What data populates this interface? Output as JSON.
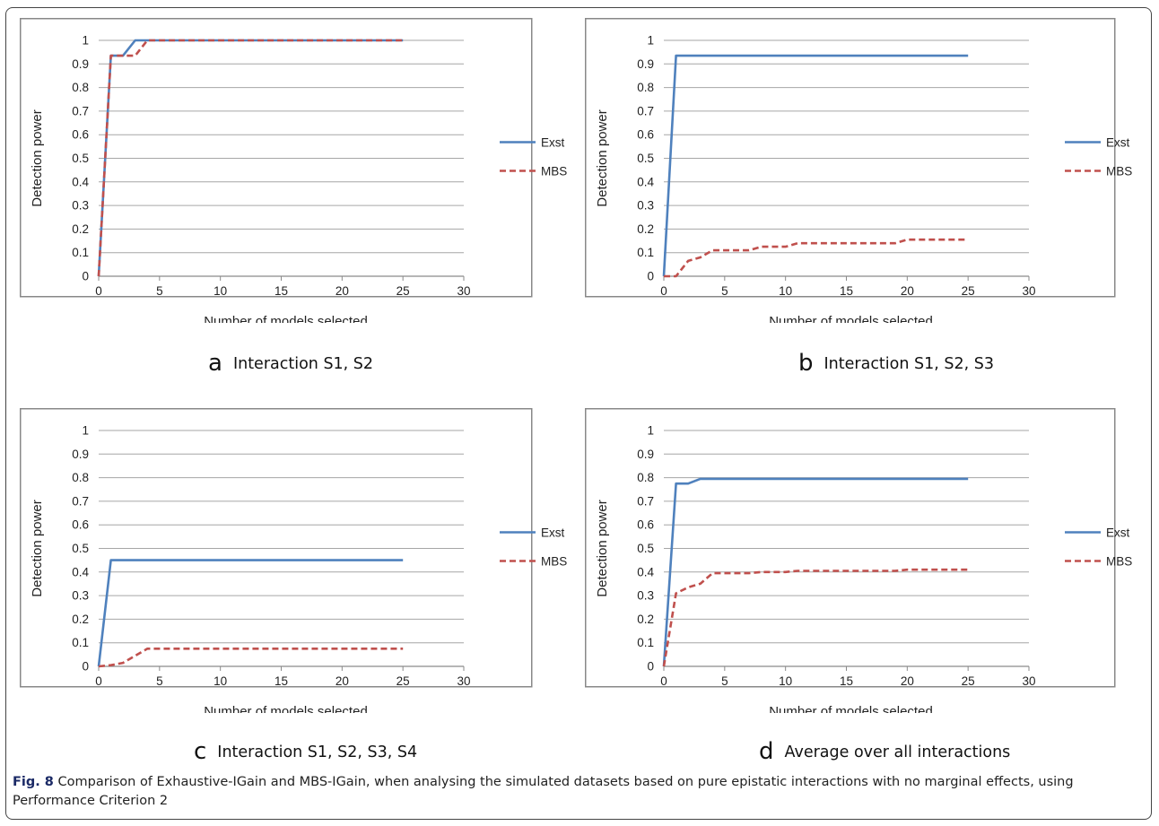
{
  "figure": {
    "label": "Fig. 8",
    "caption": "Comparison of Exhaustive-IGain and MBS-IGain, when analysing the simulated datasets based on pure epistatic interactions with no marginal effects, using Performance Criterion 2"
  },
  "panels": [
    {
      "letter": "a",
      "caption": "Interaction S1, S2"
    },
    {
      "letter": "b",
      "caption": "Interaction S1, S2, S3"
    },
    {
      "letter": "c",
      "caption": "Interaction S1, S2, S3, S4"
    },
    {
      "letter": "d",
      "caption": "Average over all interactions"
    }
  ],
  "colors": {
    "exst": "#4f81bd",
    "mbs": "#c0504d",
    "grid": "#a6a6a6",
    "frame": "#888888"
  },
  "chart_data": [
    {
      "type": "line",
      "xlabel": "Number of models selected",
      "ylabel": "Detection power",
      "xlim": [
        0,
        30
      ],
      "ylim": [
        0,
        1
      ],
      "xticks": [
        0,
        5,
        10,
        15,
        20,
        25,
        30
      ],
      "yticks": [
        0,
        0.1,
        0.2,
        0.3,
        0.4,
        0.5,
        0.6,
        0.7,
        0.8,
        0.9,
        1
      ],
      "grid": true,
      "legend": "right",
      "series": [
        {
          "name": "Exst",
          "style": "solid",
          "points": [
            [
              0,
              0
            ],
            [
              1,
              0.935
            ],
            [
              2,
              0.935
            ],
            [
              3,
              1
            ],
            [
              25,
              1
            ]
          ]
        },
        {
          "name": "MBS",
          "style": "dashed",
          "points": [
            [
              0,
              0
            ],
            [
              1,
              0.935
            ],
            [
              3,
              0.935
            ],
            [
              4,
              1
            ],
            [
              25,
              1
            ]
          ]
        }
      ]
    },
    {
      "type": "line",
      "xlabel": "Number of models selected",
      "ylabel": "Detection power",
      "xlim": [
        0,
        30
      ],
      "ylim": [
        0,
        1
      ],
      "xticks": [
        0,
        5,
        10,
        15,
        20,
        25,
        30
      ],
      "yticks": [
        0,
        0.1,
        0.2,
        0.3,
        0.4,
        0.5,
        0.6,
        0.7,
        0.8,
        0.9,
        1
      ],
      "grid": true,
      "legend": "right",
      "series": [
        {
          "name": "Exst",
          "style": "solid",
          "points": [
            [
              0,
              0
            ],
            [
              1,
              0.935
            ],
            [
              25,
              0.935
            ]
          ]
        },
        {
          "name": "MBS",
          "style": "dashed",
          "points": [
            [
              0,
              0
            ],
            [
              1,
              0
            ],
            [
              2,
              0.065
            ],
            [
              3,
              0.08
            ],
            [
              4,
              0.11
            ],
            [
              7,
              0.11
            ],
            [
              8,
              0.125
            ],
            [
              10,
              0.125
            ],
            [
              11,
              0.14
            ],
            [
              19,
              0.14
            ],
            [
              20,
              0.155
            ],
            [
              25,
              0.155
            ]
          ]
        }
      ]
    },
    {
      "type": "line",
      "xlabel": "Number of models selected",
      "ylabel": "Detection power",
      "xlim": [
        0,
        30
      ],
      "ylim": [
        0,
        1
      ],
      "xticks": [
        0,
        5,
        10,
        15,
        20,
        25,
        30
      ],
      "yticks": [
        0,
        0.1,
        0.2,
        0.3,
        0.4,
        0.5,
        0.6,
        0.7,
        0.8,
        0.9,
        1
      ],
      "grid": true,
      "legend": "right",
      "series": [
        {
          "name": "Exst",
          "style": "solid",
          "points": [
            [
              0,
              0
            ],
            [
              1,
              0.45
            ],
            [
              25,
              0.45
            ]
          ]
        },
        {
          "name": "MBS",
          "style": "dashed",
          "points": [
            [
              0,
              0
            ],
            [
              1,
              0.005
            ],
            [
              2,
              0.015
            ],
            [
              3,
              0.045
            ],
            [
              4,
              0.075
            ],
            [
              25,
              0.075
            ]
          ]
        }
      ]
    },
    {
      "type": "line",
      "xlabel": "Number of models selected",
      "ylabel": "Detection power",
      "xlim": [
        0,
        30
      ],
      "ylim": [
        0,
        1
      ],
      "xticks": [
        0,
        5,
        10,
        15,
        20,
        25,
        30
      ],
      "yticks": [
        0,
        0.1,
        0.2,
        0.3,
        0.4,
        0.5,
        0.6,
        0.7,
        0.8,
        0.9,
        1
      ],
      "grid": true,
      "legend": "right",
      "series": [
        {
          "name": "Exst",
          "style": "solid",
          "points": [
            [
              0,
              0
            ],
            [
              1,
              0.775
            ],
            [
              2,
              0.775
            ],
            [
              3,
              0.795
            ],
            [
              25,
              0.795
            ]
          ]
        },
        {
          "name": "MBS",
          "style": "dashed",
          "points": [
            [
              0,
              0
            ],
            [
              1,
              0.31
            ],
            [
              2,
              0.335
            ],
            [
              3,
              0.35
            ],
            [
              4,
              0.395
            ],
            [
              7,
              0.395
            ],
            [
              8,
              0.4
            ],
            [
              10,
              0.4
            ],
            [
              11,
              0.405
            ],
            [
              19,
              0.405
            ],
            [
              20,
              0.41
            ],
            [
              25,
              0.41
            ]
          ]
        }
      ]
    }
  ]
}
